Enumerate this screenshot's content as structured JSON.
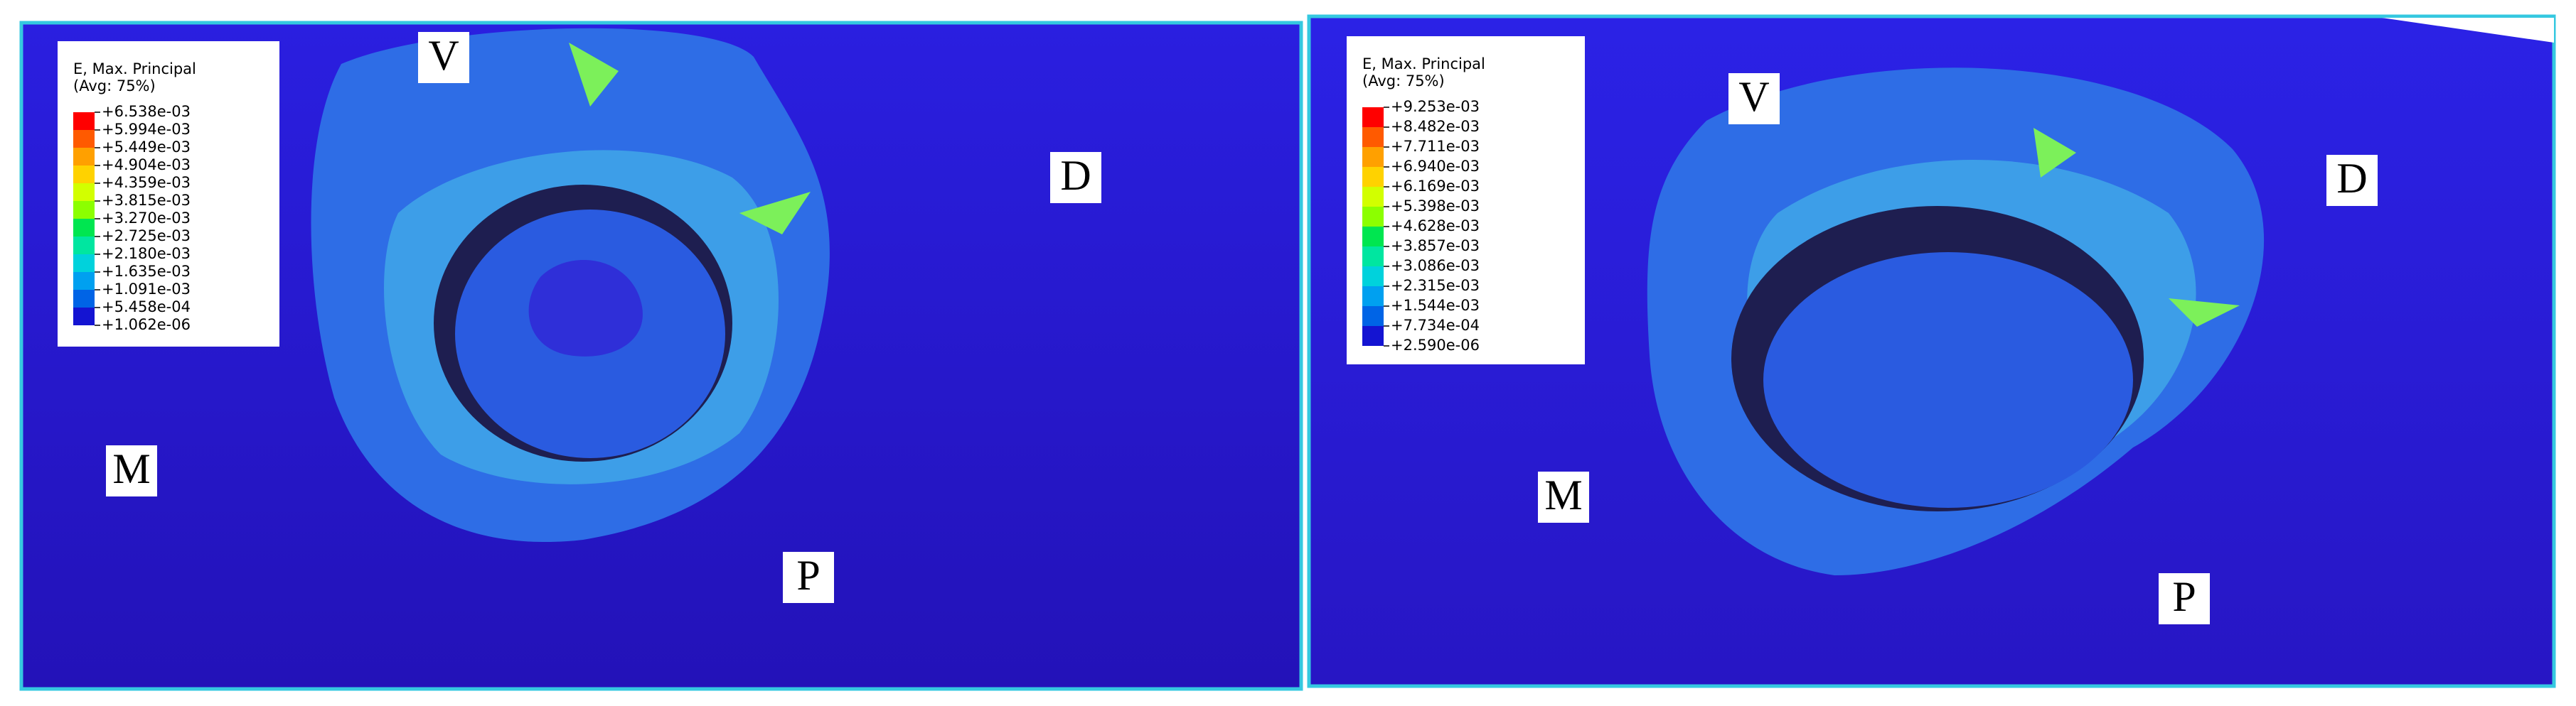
{
  "panels": [
    {
      "legend": {
        "title": "E, Max. Principal",
        "subtitle": "(Avg: 75%)",
        "levels": [
          "+6.538e-03",
          "+5.994e-03",
          "+5.449e-03",
          "+4.904e-03",
          "+4.359e-03",
          "+3.815e-03",
          "+3.270e-03",
          "+2.725e-03",
          "+2.180e-03",
          "+1.635e-03",
          "+1.091e-03",
          "+5.458e-04",
          "+1.062e-06"
        ]
      },
      "labels": {
        "V": "V",
        "D": "D",
        "M": "M",
        "P": "P"
      }
    },
    {
      "legend": {
        "title": "E, Max. Principal",
        "subtitle": "(Avg: 75%)",
        "levels": [
          "+9.253e-03",
          "+8.482e-03",
          "+7.711e-03",
          "+6.940e-03",
          "+6.169e-03",
          "+5.398e-03",
          "+4.628e-03",
          "+3.857e-03",
          "+3.086e-03",
          "+2.315e-03",
          "+1.544e-03",
          "+7.734e-04",
          "+2.590e-06"
        ]
      },
      "labels": {
        "V": "V",
        "D": "D",
        "M": "M",
        "P": "P"
      }
    }
  ]
}
